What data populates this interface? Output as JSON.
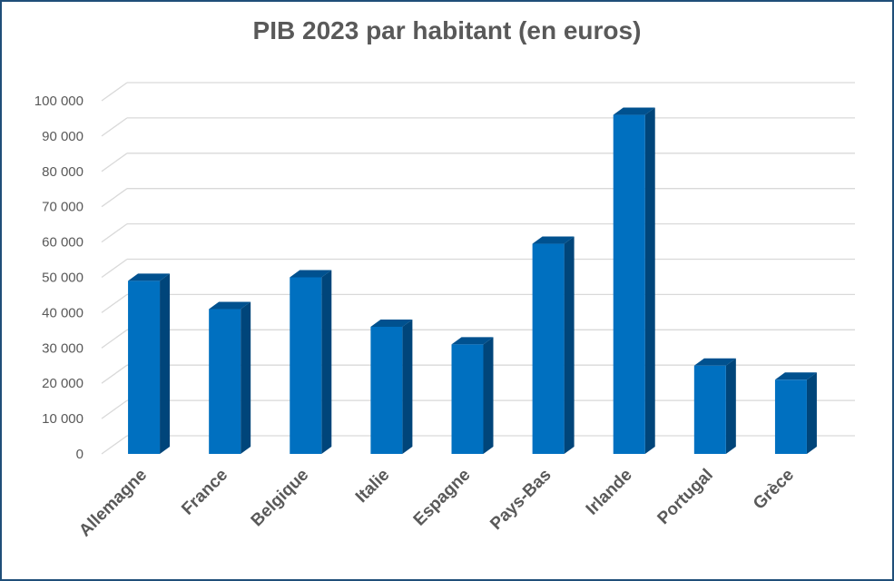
{
  "chart_data": {
    "type": "bar",
    "title": "PIB 2023 par habitant (en euros)",
    "categories": [
      "Allemagne",
      "France",
      "Belgique",
      "Italie",
      "Espagne",
      "Pays-Bas",
      "Irlande",
      "Portugal",
      "Grèce"
    ],
    "series": [
      {
        "values": [
          49000,
          41000,
          50000,
          36000,
          31000,
          59500,
          96000,
          25000,
          21000
        ]
      }
    ],
    "ylim": [
      0,
      100000
    ],
    "yticks": [
      0,
      10000,
      20000,
      30000,
      40000,
      50000,
      60000,
      70000,
      80000,
      90000,
      100000
    ],
    "ytick_labels": [
      "0",
      "10 000",
      "20 000",
      "30 000",
      "40 000",
      "50 000",
      "60 000",
      "70 000",
      "80 000",
      "90 000",
      "100 000"
    ],
    "grid": true,
    "colors": {
      "bar_front": "#0070c0",
      "bar_side": "#00457a",
      "bar_top": "#00518f",
      "grid": "#d9d9d9",
      "text": "#595959",
      "border": "#1f4e79"
    }
  }
}
